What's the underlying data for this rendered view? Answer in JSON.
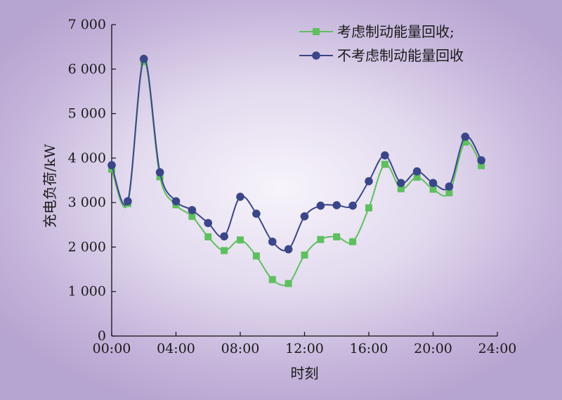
{
  "chart_data": {
    "type": "line",
    "title": "",
    "xlabel": "时刻",
    "ylabel": "充电负荷/kW",
    "xlim": [
      0,
      24
    ],
    "ylim": [
      0,
      7000
    ],
    "x_ticks": [
      "00:00",
      "04:00",
      "08:00",
      "12:00",
      "16:00",
      "20:00",
      "24:00"
    ],
    "y_ticks": [
      "0",
      "1 000",
      "2 000",
      "3 000",
      "4 000",
      "5 000",
      "6 000",
      "7 000"
    ],
    "x": [
      0,
      1,
      2,
      3,
      4,
      5,
      6,
      7,
      8,
      9,
      10,
      11,
      12,
      13,
      14,
      15,
      16,
      17,
      18,
      19,
      20,
      21,
      22,
      23
    ],
    "series": [
      {
        "name": "考虑制动能量回收;",
        "color": "#5fbf5f",
        "marker": "square",
        "values": [
          3750,
          2980,
          6170,
          3580,
          2950,
          2690,
          2230,
          1920,
          2160,
          1800,
          1270,
          1180,
          1820,
          2170,
          2230,
          2120,
          2880,
          3860,
          3310,
          3570,
          3300,
          3220,
          4360,
          3830
        ]
      },
      {
        "name": "不考虑制动能量回收",
        "color": "#3a4688",
        "marker": "circle",
        "values": [
          3840,
          3030,
          6230,
          3680,
          3030,
          2830,
          2540,
          2240,
          3130,
          2750,
          2120,
          1950,
          2690,
          2930,
          2940,
          2930,
          3480,
          4060,
          3440,
          3700,
          3440,
          3360,
          4480,
          3950
        ]
      }
    ],
    "legend_position": "top-right",
    "grid": false
  }
}
